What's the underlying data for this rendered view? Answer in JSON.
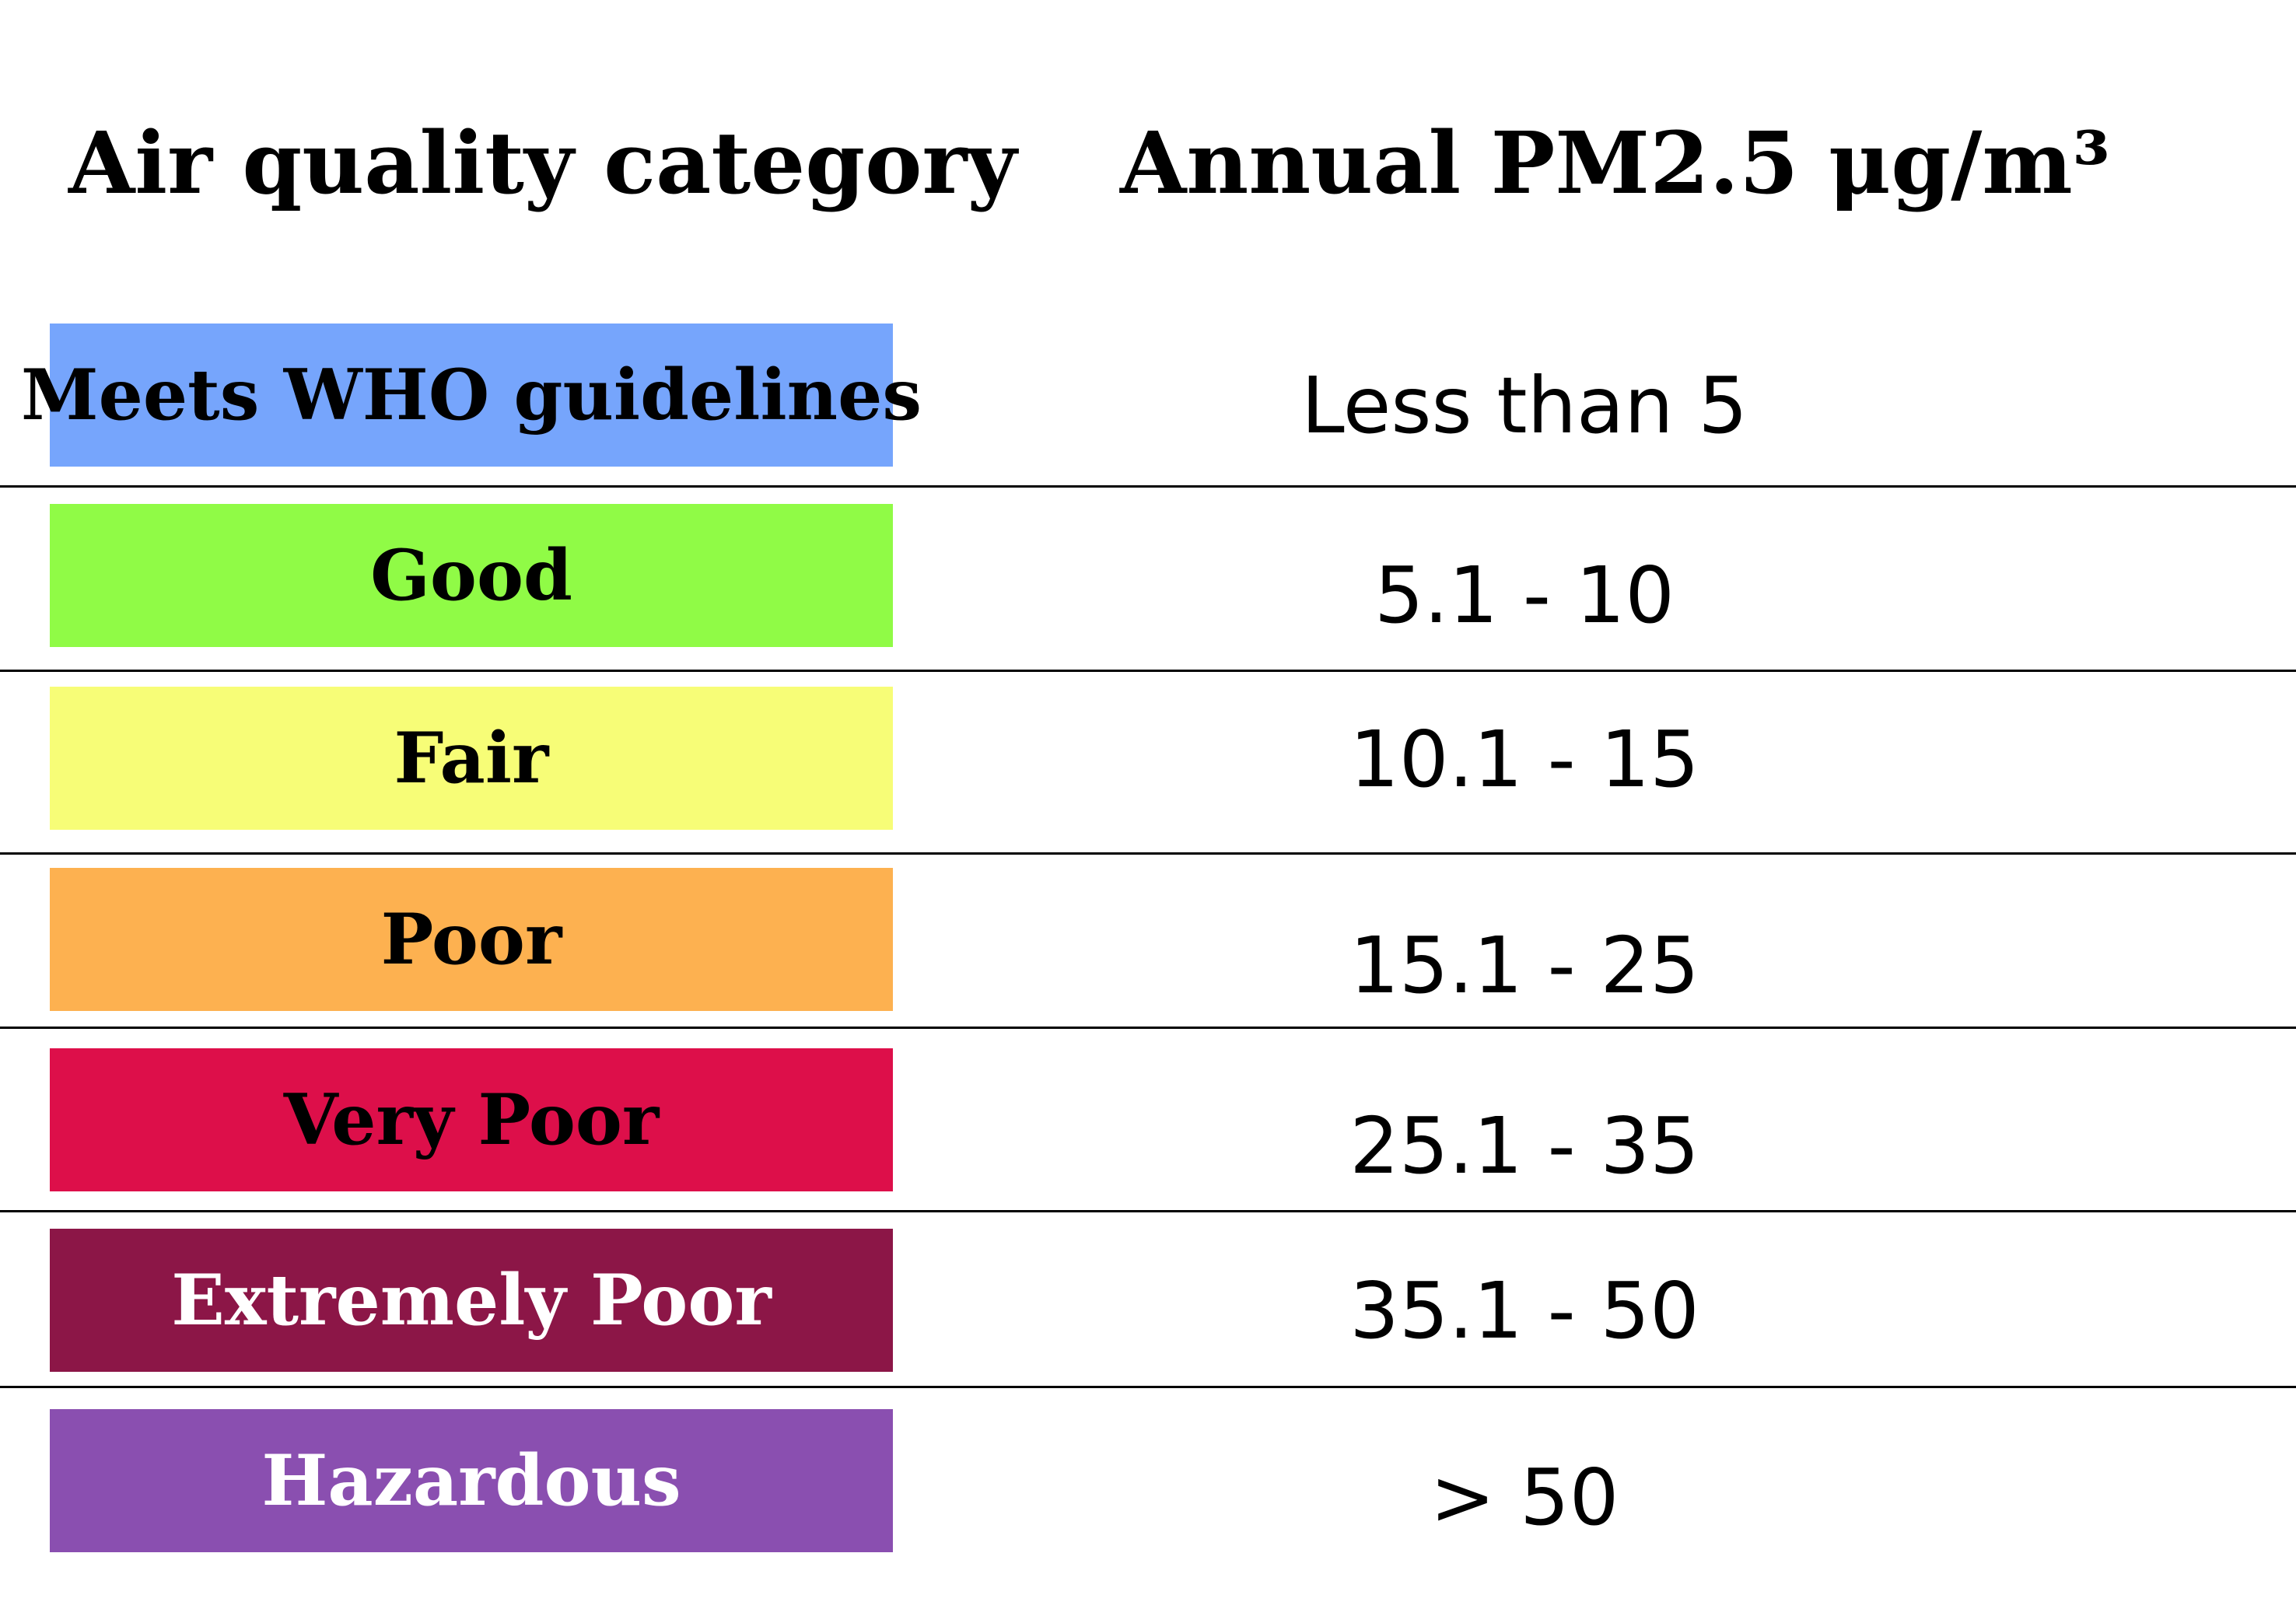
{
  "chart_data": {
    "type": "table",
    "columns": [
      "Air quality category",
      "Annual PM2.5 μg/m³"
    ],
    "rows": [
      {
        "category": "Meets WHO guidelines",
        "range": "Less than 5",
        "color": "#76a5fc",
        "text_color": "#000000"
      },
      {
        "category": "Good",
        "range": "5.1 - 10",
        "color": "#90fb46",
        "text_color": "#000000"
      },
      {
        "category": "Fair",
        "range": "10.1 - 15",
        "color": "#f7fd77",
        "text_color": "#000000"
      },
      {
        "category": "Poor",
        "range": "15.1 - 25",
        "color": "#fdb150",
        "text_color": "#000000"
      },
      {
        "category": "Very Poor",
        "range": "25.1 - 35",
        "color": "#dd0f4a",
        "text_color": "#000000"
      },
      {
        "category": "Extremely Poor",
        "range": "35.1 - 50",
        "color": "#8c1647",
        "text_color": "#ffffff"
      },
      {
        "category": "Hazardous",
        "range": "> 50",
        "color": "#8a4fb0",
        "text_color": "#ffffff"
      }
    ]
  }
}
